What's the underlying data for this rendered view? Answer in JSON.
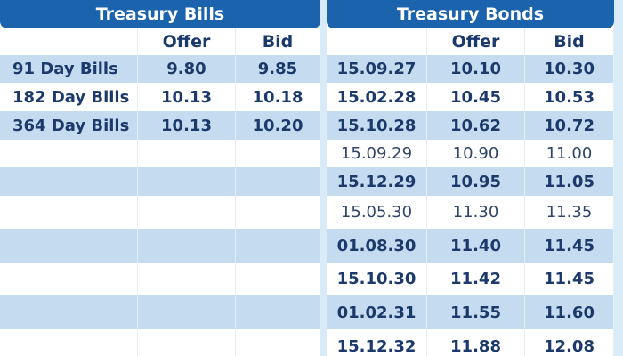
{
  "bills": {
    "title": "Treasury Bills",
    "columns": [
      "Offer",
      "Bid"
    ],
    "rows": [
      [
        "91 Day Bills",
        "9.80",
        "9.85"
      ],
      [
        "182 Day Bills",
        "10.13",
        "10.18"
      ],
      [
        "364 Day Bills",
        "10.13",
        "10.20"
      ]
    ]
  },
  "bonds": {
    "title": "Treasury Bonds",
    "columns": [
      "Offer",
      "Bid"
    ],
    "rows": [
      [
        "15.09.27",
        "10.10",
        "10.30"
      ],
      [
        "15.02.28",
        "10.45",
        "10.53"
      ],
      [
        "15.10.28",
        "10.62",
        "10.72"
      ],
      [
        "15.09.29",
        "10.90",
        "11.00"
      ],
      [
        "15.12.29",
        "10.95",
        "11.05"
      ],
      [
        "15.05.30",
        "11.30",
        "11.35"
      ],
      [
        "01.08.30",
        "11.40",
        "11.45"
      ],
      [
        "15.10.30",
        "11.42",
        "11.45"
      ],
      [
        "01.02.31",
        "11.55",
        "11.60"
      ],
      [
        "15.12.32",
        "11.88",
        "12.08"
      ]
    ]
  }
}
